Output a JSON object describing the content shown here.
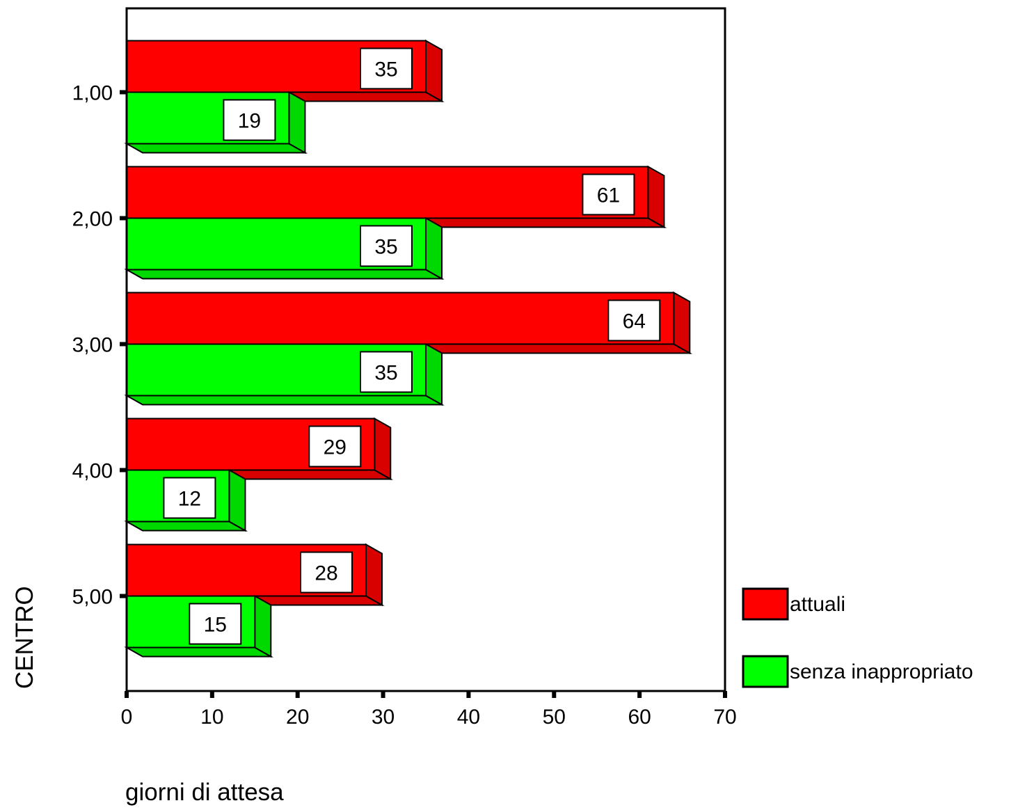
{
  "chart_data": {
    "type": "bar",
    "orientation": "horizontal",
    "style": "3d",
    "categories": [
      "1,00",
      "2,00",
      "3,00",
      "4,00",
      "5,00"
    ],
    "series": [
      {
        "name": "attuali",
        "values": [
          35,
          61,
          64,
          29,
          28
        ],
        "color": "#ff0000"
      },
      {
        "name": "senza inappropriato",
        "values": [
          19,
          35,
          35,
          12,
          15
        ],
        "color": "#00ff00"
      }
    ],
    "xlabel": "giorni di attesa",
    "ylabel": "CENTRO",
    "xlim": [
      0,
      70
    ],
    "xticks": [
      0,
      10,
      20,
      30,
      40,
      50,
      60,
      70
    ],
    "grid": false,
    "legend": {
      "position": "right",
      "entries": [
        "attuali",
        "senza inappropriato"
      ]
    },
    "data_labels": true
  }
}
